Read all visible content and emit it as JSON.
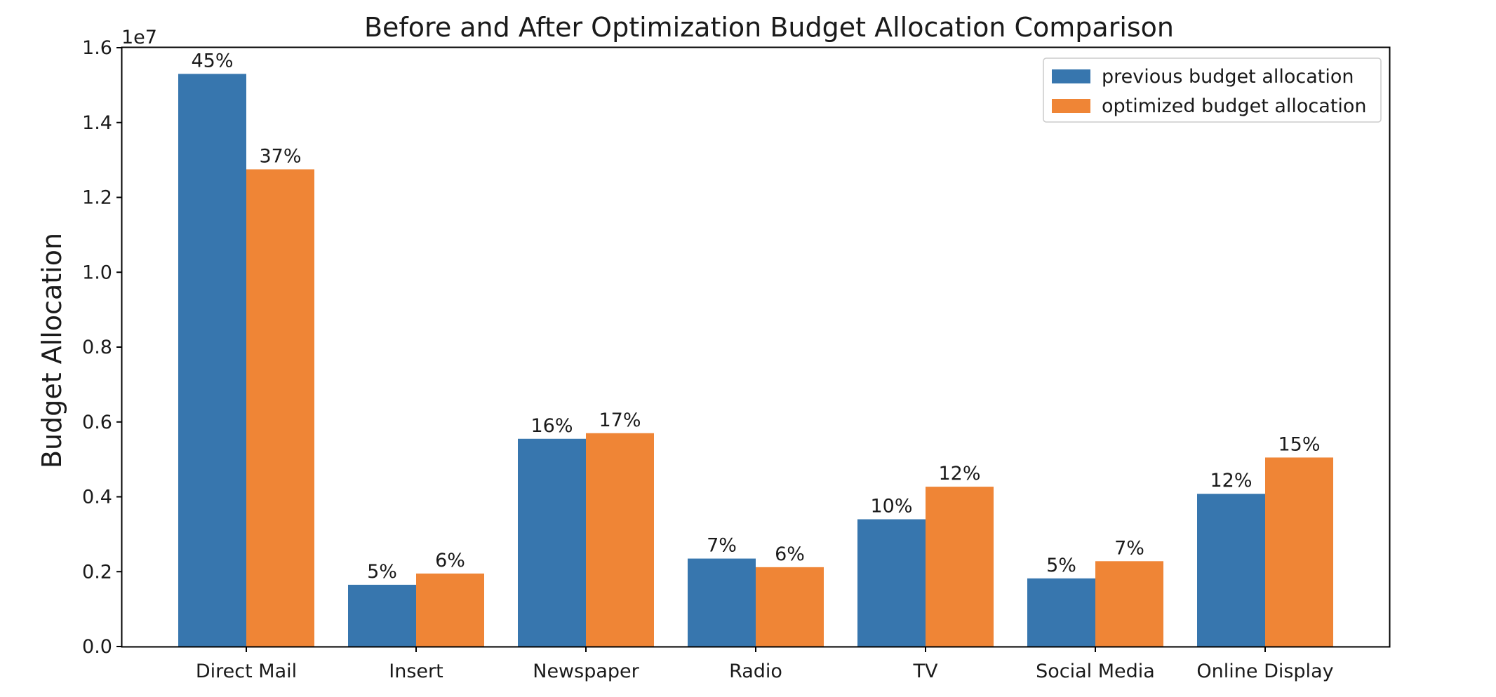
{
  "chart_data": {
    "type": "bar",
    "title": "Before and After Optimization Budget Allocation Comparison",
    "xlabel": "",
    "ylabel": "Budget Allocation",
    "y_offset_text": "1e7",
    "ylim": [
      0,
      16000000
    ],
    "yticks": [
      0,
      2000000,
      4000000,
      6000000,
      8000000,
      10000000,
      12000000,
      14000000,
      16000000
    ],
    "ytick_labels": [
      "0.0",
      "0.2",
      "0.4",
      "0.6",
      "0.8",
      "1.0",
      "1.2",
      "1.4",
      "1.6"
    ],
    "categories": [
      "Direct Mail",
      "Insert",
      "Newspaper",
      "Radio",
      "TV",
      "Social Media",
      "Online Display"
    ],
    "series": [
      {
        "name": "previous budget allocation",
        "color": "#3776ae",
        "values": [
          15300000,
          1650000,
          5550000,
          2350000,
          3400000,
          1820000,
          4080000
        ],
        "labels": [
          "45%",
          "5%",
          "16%",
          "7%",
          "10%",
          "5%",
          "12%"
        ]
      },
      {
        "name": "optimized budget allocation",
        "color": "#ef8536",
        "values": [
          12750000,
          1950000,
          5700000,
          2120000,
          4270000,
          2280000,
          5050000
        ],
        "labels": [
          "37%",
          "6%",
          "17%",
          "6%",
          "12%",
          "7%",
          "15%"
        ]
      }
    ],
    "legend": {
      "placement": "top-right"
    },
    "grid": false
  }
}
